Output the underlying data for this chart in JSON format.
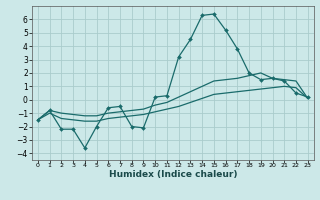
{
  "xlabel": "Humidex (Indice chaleur)",
  "ylabel": "",
  "background_color": "#cce8e8",
  "grid_color": "#aacccc",
  "line_color": "#1a6b6b",
  "x_data": [
    0,
    1,
    2,
    3,
    4,
    5,
    6,
    7,
    8,
    9,
    10,
    11,
    12,
    13,
    14,
    15,
    16,
    17,
    18,
    19,
    20,
    21,
    22,
    23
  ],
  "y_main": [
    -1.5,
    -0.8,
    -2.2,
    -2.2,
    -3.6,
    -2.0,
    -0.6,
    -0.5,
    -2.0,
    -2.1,
    0.2,
    0.3,
    3.2,
    4.5,
    6.3,
    6.4,
    5.2,
    3.8,
    2.0,
    1.5,
    1.6,
    1.4,
    0.5,
    0.2
  ],
  "y_low": [
    -1.5,
    -1.0,
    -1.4,
    -1.5,
    -1.6,
    -1.6,
    -1.4,
    -1.3,
    -1.2,
    -1.1,
    -0.9,
    -0.7,
    -0.5,
    -0.2,
    0.1,
    0.4,
    0.5,
    0.6,
    0.7,
    0.8,
    0.9,
    1.0,
    0.9,
    0.1
  ],
  "y_high": [
    -1.5,
    -0.8,
    -1.0,
    -1.1,
    -1.2,
    -1.2,
    -1.0,
    -0.9,
    -0.8,
    -0.7,
    -0.4,
    -0.2,
    0.2,
    0.6,
    1.0,
    1.4,
    1.5,
    1.6,
    1.8,
    2.0,
    1.6,
    1.5,
    1.4,
    0.1
  ],
  "xlim": [
    -0.5,
    23.5
  ],
  "ylim": [
    -4.5,
    7.0
  ],
  "yticks": [
    -4,
    -3,
    -2,
    -1,
    0,
    1,
    2,
    3,
    4,
    5,
    6
  ],
  "xticks": [
    0,
    1,
    2,
    3,
    4,
    5,
    6,
    7,
    8,
    9,
    10,
    11,
    12,
    13,
    14,
    15,
    16,
    17,
    18,
    19,
    20,
    21,
    22,
    23
  ]
}
